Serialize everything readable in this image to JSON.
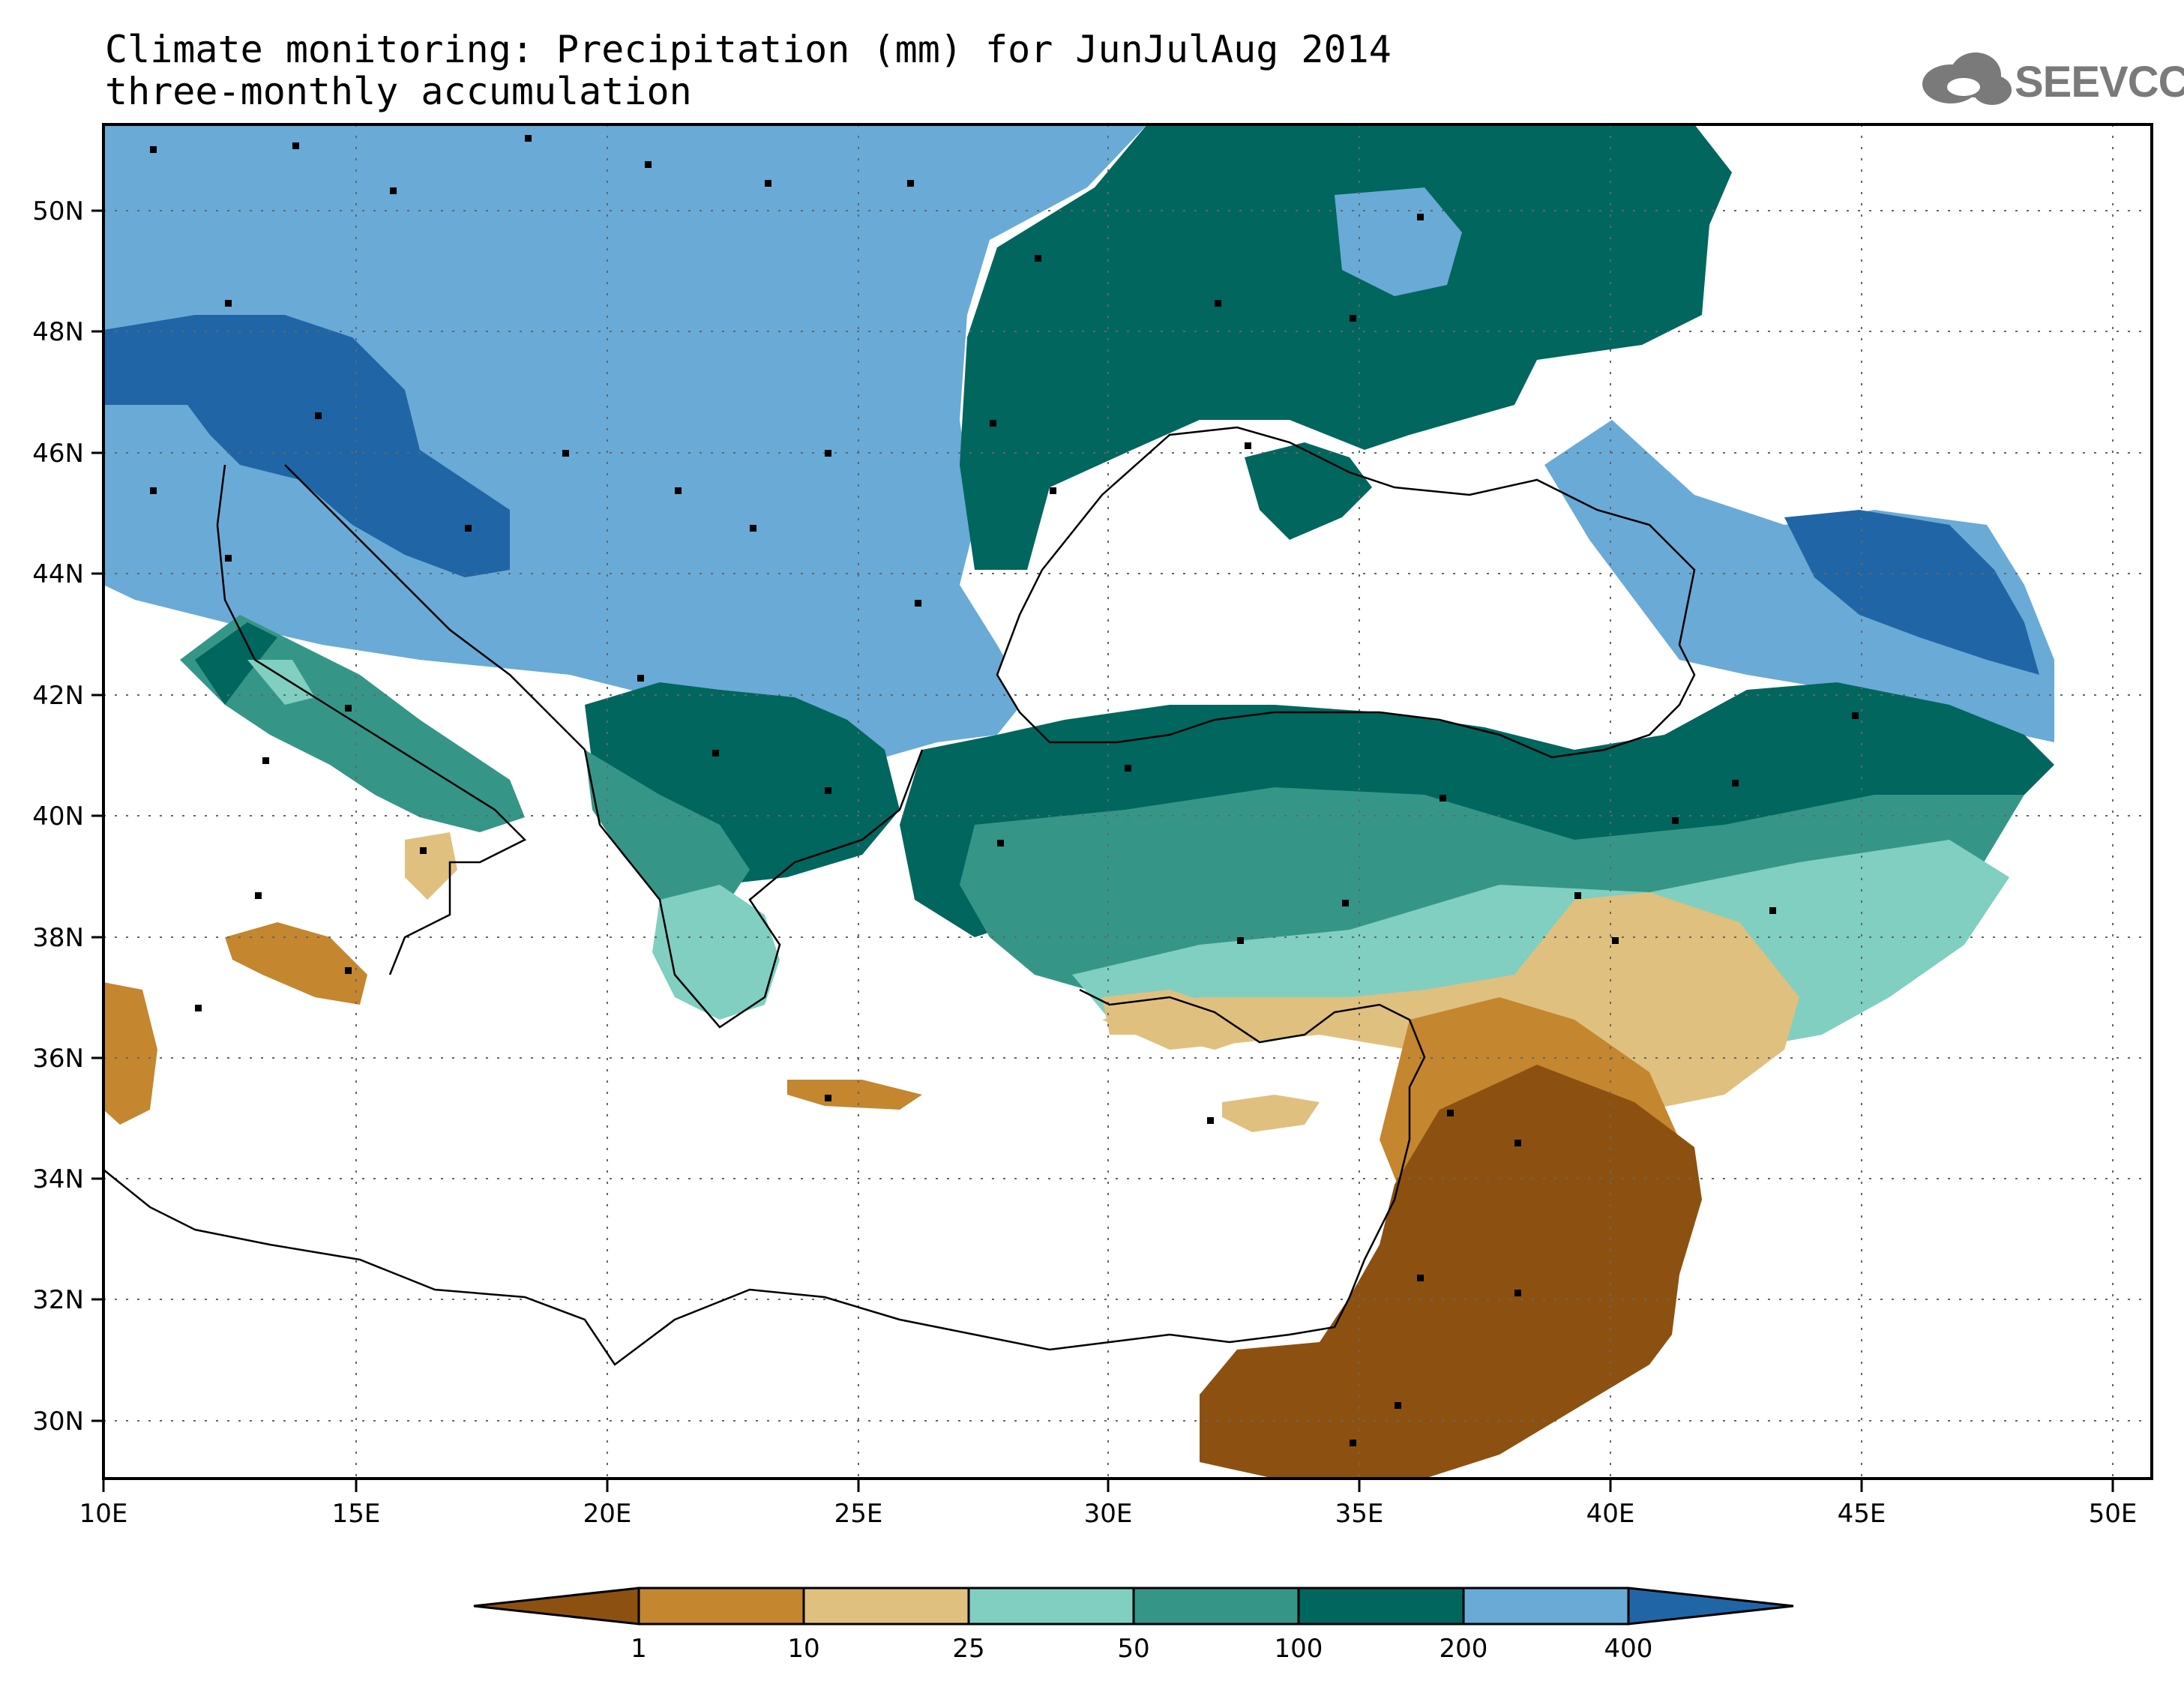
{
  "header": {
    "title_line1": "Climate monitoring: Precipitation (mm) for JunJulAug 2014",
    "title_line2": "three-monthly accumulation",
    "logo_text": "SEEVCCC"
  },
  "map": {
    "lon_ticks": [
      "10E",
      "15E",
      "20E",
      "25E",
      "30E",
      "35E",
      "40E",
      "45E",
      "50E"
    ],
    "lat_ticks": [
      "50N",
      "48N",
      "46N",
      "44N",
      "42N",
      "40N",
      "38N",
      "36N",
      "34N",
      "32N",
      "30N"
    ]
  },
  "legend": {
    "thresholds": [
      "1",
      "10",
      "25",
      "50",
      "100",
      "200",
      "400"
    ],
    "colors": [
      "#8c5111",
      "#c4862f",
      "#dfc07f",
      "#80cfc0",
      "#359688",
      "#01665e",
      "#6aaad6",
      "#2066a6"
    ]
  }
}
